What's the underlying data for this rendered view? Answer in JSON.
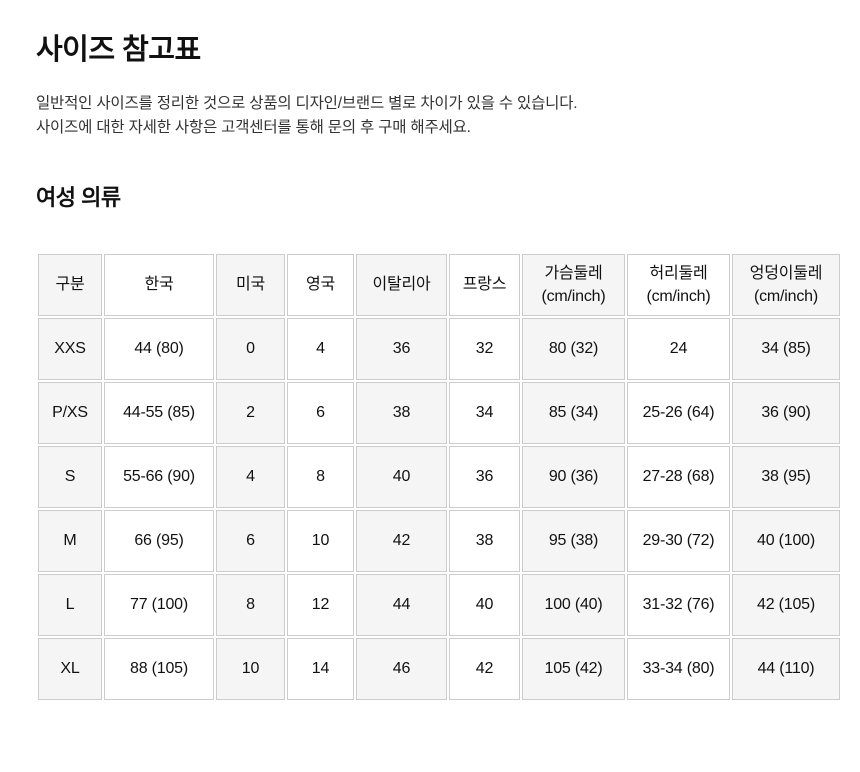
{
  "page": {
    "title": "사이즈 참고표",
    "description_line1": "일반적인 사이즈를 정리한 것으로 상품의 디자인/브랜드 별로 차이가 있을 수 있습니다.",
    "description_line2": "사이즈에 대한 자세한 사항은 고객센터를 통해 문의 후 구매 해주세요.",
    "section_title": "여성 의류"
  },
  "size_table": {
    "columns": [
      {
        "label": "구분",
        "sublabel": ""
      },
      {
        "label": "한국",
        "sublabel": ""
      },
      {
        "label": "미국",
        "sublabel": ""
      },
      {
        "label": "영국",
        "sublabel": ""
      },
      {
        "label": "이탈리아",
        "sublabel": ""
      },
      {
        "label": "프랑스",
        "sublabel": ""
      },
      {
        "label": "가슴둘레",
        "sublabel": "(cm/inch)"
      },
      {
        "label": "허리둘레",
        "sublabel": "(cm/inch)"
      },
      {
        "label": "엉덩이둘레",
        "sublabel": "(cm/inch)"
      }
    ],
    "rows": [
      [
        "XXS",
        "44 (80)",
        "0",
        "4",
        "36",
        "32",
        "80 (32)",
        "24",
        "34 (85)"
      ],
      [
        "P/XS",
        "44-55 (85)",
        "2",
        "6",
        "38",
        "34",
        "85 (34)",
        "25-26 (64)",
        "36 (90)"
      ],
      [
        "S",
        "55-66 (90)",
        "4",
        "8",
        "40",
        "36",
        "90 (36)",
        "27-28 (68)",
        "38 (95)"
      ],
      [
        "M",
        "66 (95)",
        "6",
        "10",
        "42",
        "38",
        "95 (38)",
        "29-30 (72)",
        "40 (100)"
      ],
      [
        "L",
        "77 (100)",
        "8",
        "12",
        "44",
        "40",
        "100 (40)",
        "31-32 (76)",
        "42 (105)"
      ],
      [
        "XL",
        "88 (105)",
        "10",
        "14",
        "46",
        "42",
        "105 (42)",
        "33-34 (80)",
        "44 (110)"
      ]
    ],
    "colors": {
      "shaded_column_bg": "#f5f5f5",
      "cell_border": "#cccccc",
      "text": "#111111",
      "description_text": "#333333"
    }
  }
}
